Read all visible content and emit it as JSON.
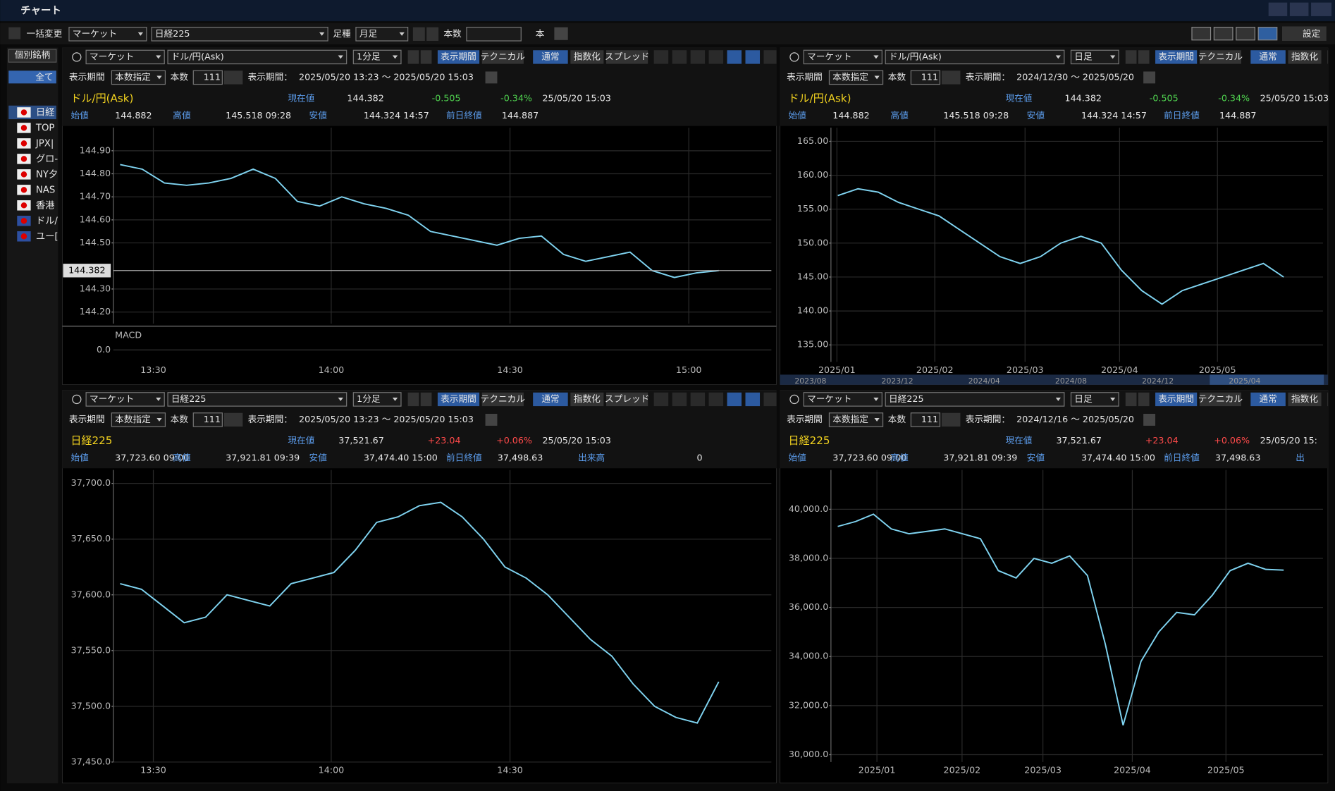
{
  "window_title": "チャート",
  "toolbar": {
    "batch": "一括変更",
    "market": "マーケット",
    "symbol": "日経225",
    "bar_type_label": "足種",
    "bar_type": "月足",
    "count_label": "本数",
    "count_unit": "本",
    "settings": "設定"
  },
  "sidebar": {
    "tab": "個別銘柄",
    "all": "全て",
    "items": [
      "日経",
      "TOP",
      "JPX|",
      "グロ-",
      "NY夕",
      "NAS",
      "香港",
      "ドル/",
      "ユー["
    ]
  },
  "panels": [
    {
      "market": "マーケット",
      "symbol": "ドル/円(Ask)",
      "timeframe": "1分足",
      "buttons": [
        "表示期間",
        "テクニカル",
        "通常",
        "指数化",
        "スプレッド"
      ],
      "period_label": "表示期間",
      "count_mode": "本数指定",
      "count_label": "本数",
      "count": "111",
      "range_label": "表示期間：",
      "range": "2025/05/20 13:23 ～ 2025/05/20 15:03",
      "name": "ドル/円(Ask)",
      "current_label": "現在値",
      "current": "144.382",
      "change": "-0.505",
      "change_pct": "-0.34%",
      "time": "25/05/20 15:03",
      "open_label": "始値",
      "open": "144.882",
      "high_label": "高値",
      "high": "145.518 09:28",
      "low_label": "安値",
      "low": "144.324 14:57",
      "prev_label": "前日終値",
      "prev": "144.887",
      "price_tag": "144.382",
      "chart": {
        "type": "line",
        "color": "#7fd3f0",
        "values": [
          144.84,
          144.82,
          144.76,
          144.75,
          144.76,
          144.78,
          144.82,
          144.78,
          144.68,
          144.66,
          144.7,
          144.67,
          144.65,
          144.62,
          144.55,
          144.53,
          144.51,
          144.49,
          144.52,
          144.53,
          144.45,
          144.42,
          144.44,
          144.46,
          144.38,
          144.35,
          144.37,
          144.38
        ],
        "ylim": [
          144.15,
          145.0
        ],
        "yticks": [
          {
            "value": 144.9,
            "label": "144.90"
          },
          {
            "value": 144.8,
            "label": "144.80"
          },
          {
            "value": 144.7,
            "label": "144.70"
          },
          {
            "value": 144.6,
            "label": "144.60"
          },
          {
            "value": 144.5,
            "label": "144.50"
          },
          {
            "value": 144.3,
            "label": "144.30"
          },
          {
            "value": 144.2,
            "label": "144.20"
          }
        ],
        "xlabels": [
          "13:30",
          "14:00",
          "14:30",
          "15:00"
        ],
        "grid": true,
        "macd": {
          "label": "MACD",
          "ylim": [
            -0.05,
            0.1
          ],
          "yticks": [
            {
              "value": 0,
              "label": "0.0"
            }
          ]
        }
      }
    },
    {
      "market": "マーケット",
      "symbol": "ドル/円(Ask)",
      "timeframe": "日足",
      "buttons": [
        "表示期間",
        "テクニカル",
        "通常",
        "指数化"
      ],
      "period_label": "表示期間",
      "count_mode": "本数指定",
      "count_label": "本数",
      "count": "111",
      "range_label": "表示期間：",
      "range": "2024/12/30 ～ 2025/05/20",
      "name": "ドル/円(Ask)",
      "current_label": "現在値",
      "current": "144.382",
      "change": "-0.505",
      "change_pct": "-0.34%",
      "time": "25/05/20 15:03",
      "open_label": "始値",
      "open": "144.882",
      "high_label": "高値",
      "high": "145.518 09:28",
      "low_label": "安値",
      "low": "144.324 14:57",
      "prev_label": "前日終値",
      "prev": "144.887",
      "chart": {
        "type": "line",
        "color": "#7fd3f0",
        "values": [
          157,
          158,
          157.5,
          156,
          155,
          154,
          152,
          150,
          148,
          147,
          148,
          150,
          151,
          150,
          146,
          143,
          141,
          143,
          144,
          145,
          146,
          147,
          145
        ],
        "ylim": [
          132.5,
          167
        ],
        "yticks": [
          {
            "value": 165,
            "label": "165.00"
          },
          {
            "value": 160,
            "label": "160.00"
          },
          {
            "value": 155,
            "label": "155.00"
          },
          {
            "value": 150,
            "label": "150.00"
          },
          {
            "value": 145,
            "label": "145.00"
          },
          {
            "value": 140,
            "label": "140.00"
          },
          {
            "value": 135,
            "label": "135.00"
          }
        ],
        "xlabels": [
          "2025/01",
          "2025/02",
          "2025/03",
          "2025/04",
          "2025/05"
        ],
        "grid": true,
        "navigator_labels": [
          "2023/08",
          "2023/12",
          "2024/04",
          "2024/08",
          "2024/12",
          "2025/04"
        ]
      }
    },
    {
      "market": "マーケット",
      "symbol": "日経225",
      "timeframe": "1分足",
      "buttons": [
        "表示期間",
        "テクニカル",
        "通常",
        "指数化",
        "スプレッド"
      ],
      "period_label": "表示期間",
      "count_mode": "本数指定",
      "count_label": "本数",
      "count": "111",
      "range_label": "表示期間：",
      "range": "2025/05/20 13:23 ～ 2025/05/20 15:03",
      "name": "日経225",
      "current_label": "現在値",
      "current": "37,521.67",
      "change": "+23.04",
      "change_pct": "+0.06%",
      "time": "25/05/20 15:03",
      "open_label": "始値",
      "open": "37,723.60 09:00",
      "high_label": "高値",
      "high": "37,921.81 09:39",
      "low_label": "安値",
      "low": "37,474.40 15:00",
      "prev_label": "前日終値",
      "prev": "37,498.63",
      "volume_label": "出来高",
      "volume": "0",
      "chart": {
        "type": "line",
        "color": "#7fd3f0",
        "values": [
          37610,
          37605,
          37590,
          37575,
          37580,
          37600,
          37595,
          37590,
          37610,
          37615,
          37620,
          37640,
          37665,
          37670,
          37680,
          37683,
          37670,
          37650,
          37625,
          37615,
          37600,
          37580,
          37560,
          37545,
          37520,
          37500,
          37490,
          37485,
          37522
        ],
        "ylim": [
          37450,
          37712
        ],
        "yticks": [
          {
            "value": 37700,
            "label": "37,700.0"
          },
          {
            "value": 37650,
            "label": "37,650.0"
          },
          {
            "value": 37600,
            "label": "37,600.0"
          },
          {
            "value": 37550,
            "label": "37,550.0"
          },
          {
            "value": 37500,
            "label": "37,500.0"
          },
          {
            "value": 37450,
            "label": "37,450.0"
          }
        ],
        "xlabels": [
          "13:30",
          "14:00",
          "14:30"
        ],
        "grid": true
      }
    },
    {
      "market": "マーケット",
      "symbol": "日経225",
      "timeframe": "日足",
      "buttons": [
        "表示期間",
        "テクニカル",
        "通常",
        "指数化"
      ],
      "period_label": "表示期間",
      "count_mode": "本数指定",
      "count_label": "本数",
      "count": "111",
      "range_label": "表示期間：",
      "range": "2024/12/16 ～ 2025/05/20",
      "name": "日経225",
      "current_label": "現在値",
      "current": "37,521.67",
      "change": "+23.04",
      "change_pct": "+0.06%",
      "time": "25/05/20 15:",
      "open_label": "始値",
      "open": "37,723.60 09:00",
      "high_label": "高値",
      "high": "37,921.81 09:39",
      "low_label": "安値",
      "low": "37,474.40 15:00",
      "prev_label": "前日終値",
      "prev": "37,498.63",
      "volume_label": "出",
      "chart": {
        "type": "line",
        "color": "#7fd3f0",
        "values": [
          39300,
          39500,
          39800,
          39200,
          39000,
          39100,
          39200,
          39000,
          38800,
          37500,
          37200,
          38000,
          37800,
          38100,
          37300,
          34500,
          31200,
          33800,
          35000,
          35800,
          35700,
          36500,
          37500,
          37800,
          37550,
          37520
        ],
        "ylim": [
          29700,
          41600
        ],
        "yticks": [
          {
            "value": 40000,
            "label": "40,000.0"
          },
          {
            "value": 38000,
            "label": "38,000.0"
          },
          {
            "value": 36000,
            "label": "36,000.0"
          },
          {
            "value": 34000,
            "label": "34,000.0"
          },
          {
            "value": 32000,
            "label": "32,000.0"
          },
          {
            "value": 30000,
            "label": "30,000.0"
          }
        ],
        "xlabels": [
          "2025/01",
          "2025/02",
          "2025/03",
          "2025/04",
          "2025/05"
        ],
        "grid": true
      }
    }
  ]
}
